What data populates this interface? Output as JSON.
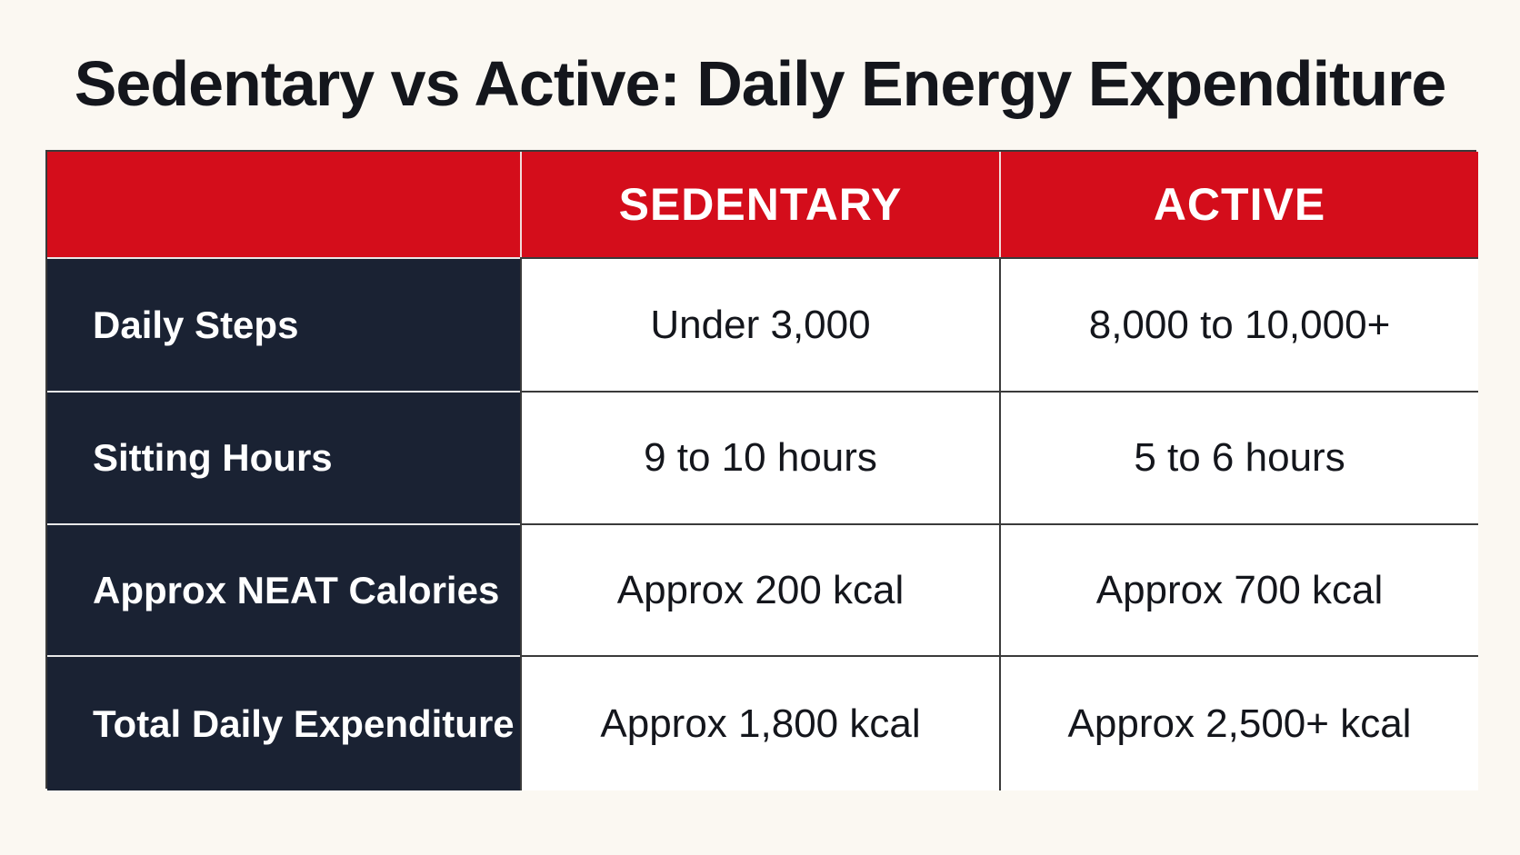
{
  "chart_data": {
    "type": "table",
    "title": "Sedentary vs Active: Daily Energy Expenditure",
    "columns": [
      "",
      "SEDENTARY",
      "ACTIVE"
    ],
    "rows": [
      {
        "label": "Daily Steps",
        "values": [
          "Under 3,000",
          "8,000 to 10,000+"
        ]
      },
      {
        "label": "Sitting Hours",
        "values": [
          "9 to 10 hours",
          "5 to 6 hours"
        ]
      },
      {
        "label": "Approx NEAT Calories",
        "values": [
          "Approx 200 kcal",
          "Approx 700 kcal"
        ]
      },
      {
        "label": "Total Daily Expenditure",
        "values": [
          "Approx 1,800 kcal",
          "Approx 2,500+ kcal"
        ]
      }
    ]
  },
  "colors": {
    "header_background": "#d40d1b",
    "row_label_background": "#1a2233",
    "page_background": "#fbf8f2"
  }
}
